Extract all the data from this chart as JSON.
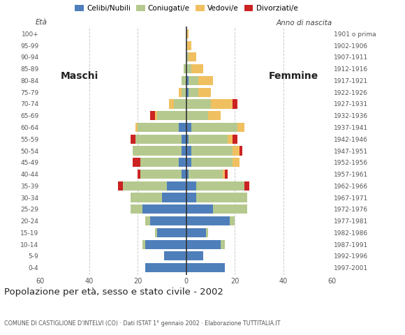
{
  "age_groups": [
    "0-4",
    "5-9",
    "10-14",
    "15-19",
    "20-24",
    "25-29",
    "30-34",
    "35-39",
    "40-44",
    "45-49",
    "50-54",
    "55-59",
    "60-64",
    "65-69",
    "70-74",
    "75-79",
    "80-84",
    "85-89",
    "90-94",
    "95-99",
    "100+"
  ],
  "birth_years": [
    "1997-2001",
    "1992-1996",
    "1987-1991",
    "1982-1986",
    "1977-1981",
    "1972-1976",
    "1967-1971",
    "1962-1966",
    "1957-1961",
    "1952-1956",
    "1947-1951",
    "1942-1946",
    "1937-1941",
    "1932-1936",
    "1927-1931",
    "1922-1926",
    "1917-1921",
    "1912-1916",
    "1907-1911",
    "1902-1906",
    "1901 o prima"
  ],
  "males": {
    "celibe": [
      17,
      9,
      17,
      12,
      15,
      18,
      10,
      8,
      2,
      3,
      2,
      2,
      3,
      0,
      0,
      0,
      0,
      0,
      0,
      0,
      0
    ],
    "coniugato": [
      0,
      0,
      1,
      1,
      2,
      5,
      13,
      18,
      17,
      16,
      20,
      19,
      17,
      12,
      5,
      2,
      2,
      1,
      0,
      0,
      0
    ],
    "vedovo": [
      0,
      0,
      0,
      0,
      0,
      0,
      0,
      0,
      0,
      0,
      0,
      0,
      1,
      1,
      2,
      1,
      0,
      0,
      0,
      0,
      0
    ],
    "divorziato": [
      0,
      0,
      0,
      0,
      0,
      0,
      0,
      2,
      1,
      3,
      0,
      2,
      0,
      2,
      0,
      0,
      0,
      0,
      0,
      0,
      0
    ]
  },
  "females": {
    "nubile": [
      16,
      7,
      14,
      8,
      18,
      11,
      4,
      4,
      1,
      2,
      2,
      1,
      2,
      0,
      0,
      1,
      1,
      0,
      0,
      0,
      0
    ],
    "coniugata": [
      0,
      0,
      2,
      1,
      2,
      14,
      21,
      20,
      14,
      17,
      17,
      16,
      19,
      9,
      10,
      4,
      4,
      2,
      1,
      0,
      0
    ],
    "vedova": [
      0,
      0,
      0,
      0,
      0,
      0,
      0,
      0,
      1,
      3,
      3,
      2,
      3,
      5,
      9,
      5,
      6,
      5,
      3,
      2,
      1
    ],
    "divorziata": [
      0,
      0,
      0,
      0,
      0,
      0,
      0,
      2,
      1,
      0,
      1,
      2,
      0,
      0,
      2,
      0,
      0,
      0,
      0,
      0,
      0
    ]
  },
  "colors": {
    "celibe": "#4f7fba",
    "coniugato": "#b5c98e",
    "vedovo": "#f0c060",
    "divorziato": "#cc2222"
  },
  "xlim": 60,
  "title": "Popolazione per età, sesso e stato civile - 2002",
  "subtitle": "COMUNE DI CASTIGLIONE D'INTELVI (CO) · Dati ISTAT 1° gennaio 2002 · Elaborazione TUTTITALIA.IT",
  "legend_labels": [
    "Celibi/Nubili",
    "Coniugati/e",
    "Vedovi/e",
    "Divorziati/e"
  ],
  "ylabel_eta": "Età",
  "ylabel_anno": "Anno di nascita",
  "label_maschi": "Maschi",
  "label_femmine": "Femmine"
}
